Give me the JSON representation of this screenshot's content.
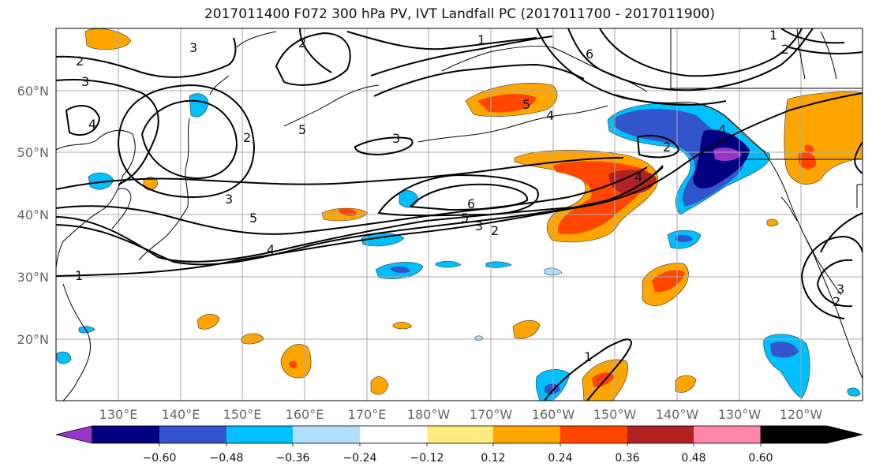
{
  "title": "2017011400 F072 300 hPa PV, IVT Landfall PC (2017011700 - 2017011900)",
  "lat_labels": [
    "60°N",
    "50°N",
    "40°N",
    "30°N",
    "20°N"
  ],
  "lon_labels": [
    "130°E",
    "140°E",
    "150°E",
    "160°E",
    "170°E",
    "180°W",
    "170°W",
    "160°W",
    "150°W",
    "140°W",
    "130°W",
    "120°W"
  ],
  "colorbar": {
    "tick_labels": [
      "−0.60",
      "−0.48",
      "−0.36",
      "−0.24",
      "−0.12",
      "0.12",
      "0.24",
      "0.36",
      "0.48",
      "0.60"
    ],
    "colors": [
      "#9933cc",
      "#000080",
      "#3355cc",
      "#00bfff",
      "#b0e0ff",
      "#ffffff",
      "#ffeb80",
      "#ffa500",
      "#ff4500",
      "#b22222",
      "#ff88aa"
    ]
  },
  "contour_labels": [
    "1",
    "2",
    "3",
    "4",
    "5",
    "6"
  ]
}
